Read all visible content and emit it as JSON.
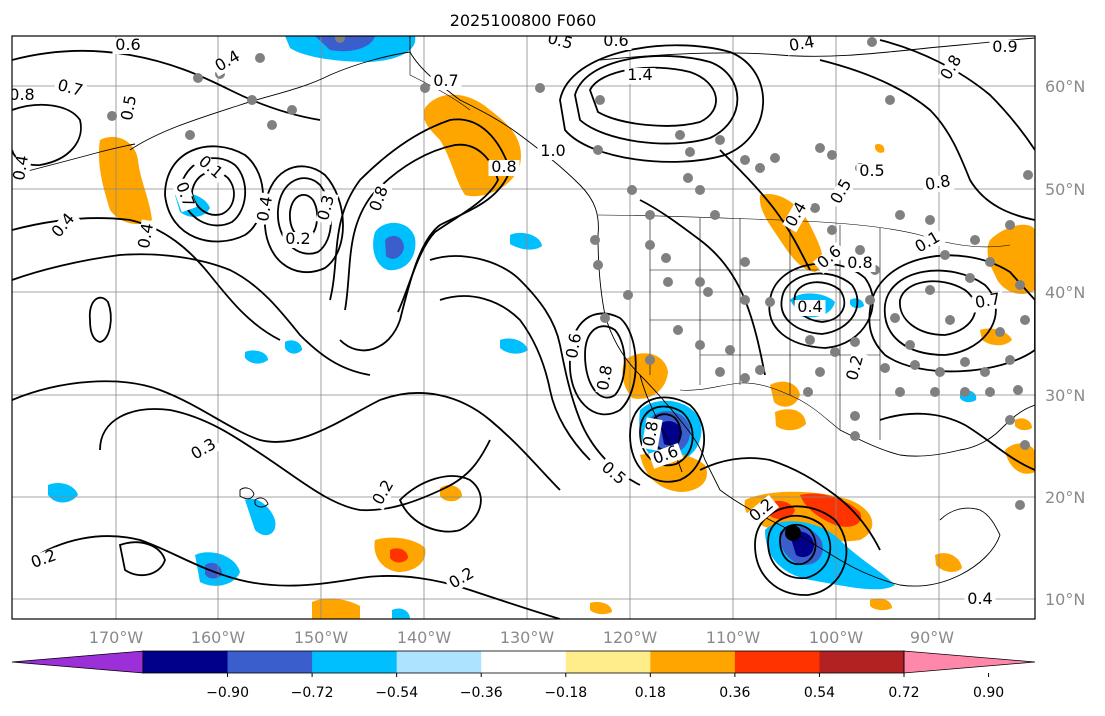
{
  "title": "2025100800 F060",
  "lon_labels": [
    "170°W",
    "160°W",
    "150°W",
    "140°W",
    "130°W",
    "120°W",
    "110°W",
    "100°W",
    "90°W"
  ],
  "lat_labels": [
    "60°N",
    "50°N",
    "40°N",
    "30°N",
    "20°N",
    "10°N"
  ],
  "colorbar": {
    "colors": [
      "#9b30d9",
      "#00008b",
      "#3a5fcd",
      "#00bfff",
      "#aee3ff",
      "#ffffff",
      "#ffec8b",
      "#ffa500",
      "#ff3300",
      "#b22222",
      "#ff88aa"
    ],
    "tick_labels": [
      "−0.90",
      "−0.72",
      "−0.54",
      "−0.36",
      "−0.18",
      "0.18",
      "0.36",
      "0.54",
      "0.72",
      "0.90"
    ]
  },
  "contour_labels": [
    "0.6",
    "0.4",
    "0.5",
    "0.7",
    "0.8",
    "0.5",
    "0.4",
    "0.6",
    "0.7",
    "0.1",
    "0.2",
    "0.3",
    "0.4",
    "0.8",
    "0.7",
    "1.4",
    "1.0",
    "0.8",
    "0.8",
    "0.5",
    "0.4",
    "0.8",
    "0.5",
    "0.8",
    "0.6",
    "0.4",
    "0.2",
    "0.7",
    "0.1",
    "0.6",
    "0.8",
    "0.9",
    "0.3",
    "0.2",
    "0.5",
    "0.2",
    "0.2",
    "0.4",
    "0.2",
    "0.4",
    "0.8",
    "0.6",
    "0.4",
    "0.4"
  ]
}
